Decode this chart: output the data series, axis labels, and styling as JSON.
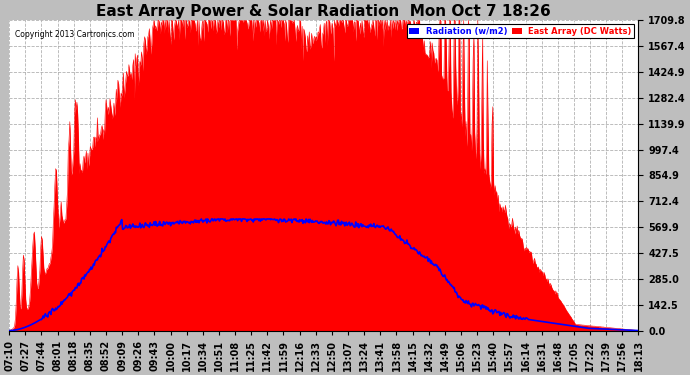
{
  "title": "East Array Power & Solar Radiation  Mon Oct 7 18:26",
  "copyright": "Copyright 2013 Cartronics.com",
  "legend_radiation": "Radiation (w/m2)",
  "legend_east": "East Array (DC Watts)",
  "ylabel_right_ticks": [
    0.0,
    142.5,
    285.0,
    427.5,
    569.9,
    712.4,
    854.9,
    997.4,
    1139.9,
    1282.4,
    1424.9,
    1567.4,
    1709.8
  ],
  "ymax": 1709.8,
  "ymin": 0.0,
  "background_color": "#bebebe",
  "plot_bg_color": "#ffffff",
  "grid_color": "#aaaaaa",
  "radiation_color": "#0000ff",
  "east_array_color": "#ff0000",
  "title_fontsize": 11,
  "tick_label_fontsize": 7,
  "x_tick_labels": [
    "07:10",
    "07:27",
    "07:44",
    "08:01",
    "08:18",
    "08:35",
    "08:52",
    "09:09",
    "09:26",
    "09:43",
    "10:00",
    "10:17",
    "10:34",
    "10:51",
    "11:08",
    "11:25",
    "11:42",
    "11:59",
    "12:16",
    "12:33",
    "12:50",
    "13:07",
    "13:24",
    "13:41",
    "13:58",
    "14:15",
    "14:32",
    "14:49",
    "15:06",
    "15:23",
    "15:40",
    "15:57",
    "16:14",
    "16:31",
    "16:48",
    "17:05",
    "17:22",
    "17:39",
    "17:56",
    "18:13"
  ],
  "n_points": 800
}
